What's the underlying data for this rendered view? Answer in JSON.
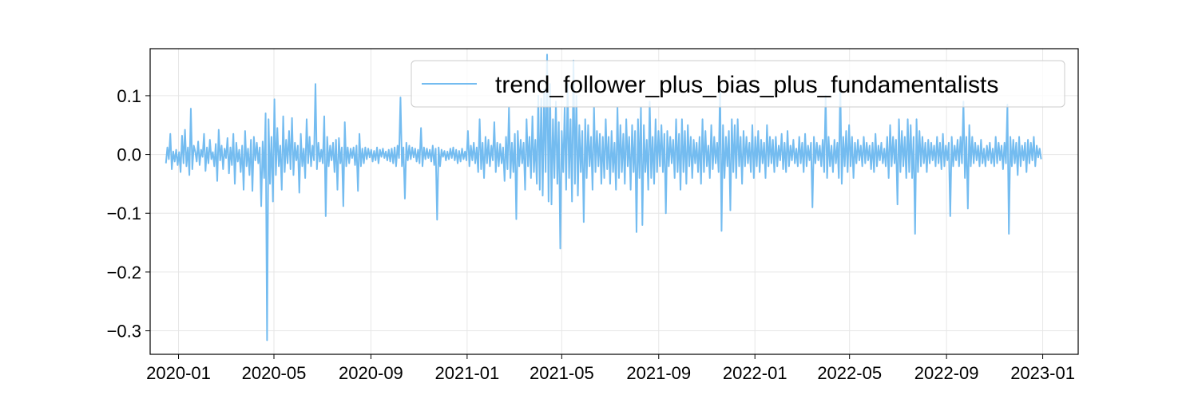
{
  "chart_data": {
    "type": "line",
    "title": "",
    "xlabel": "",
    "ylabel": "",
    "x_range": [
      "2019-11-26",
      "2023-02-15"
    ],
    "x_start": "2019-12-16",
    "x_end": "2022-12-30",
    "ylim": [
      -0.34,
      0.18
    ],
    "grid": true,
    "legend_position": "top-right",
    "x_ticks": [
      {
        "date": "2020-01-01",
        "label": "2020-01"
      },
      {
        "date": "2020-05-01",
        "label": "2020-05"
      },
      {
        "date": "2020-09-01",
        "label": "2020-09"
      },
      {
        "date": "2021-01-01",
        "label": "2021-01"
      },
      {
        "date": "2021-05-01",
        "label": "2021-05"
      },
      {
        "date": "2021-09-01",
        "label": "2021-09"
      },
      {
        "date": "2022-01-01",
        "label": "2022-01"
      },
      {
        "date": "2022-05-01",
        "label": "2022-05"
      },
      {
        "date": "2022-09-01",
        "label": "2022-09"
      },
      {
        "date": "2023-01-01",
        "label": "2023-01"
      }
    ],
    "y_ticks": [
      {
        "value": 0.1,
        "label": "0.1"
      },
      {
        "value": 0.0,
        "label": "0.0"
      },
      {
        "value": -0.1,
        "label": "−0.1"
      },
      {
        "value": -0.2,
        "label": "−0.2"
      },
      {
        "value": -0.3,
        "label": "−0.3"
      }
    ],
    "series": [
      {
        "name": "trend_follower_plus_bias_plus_fundamentalists",
        "color": "#74bcf0",
        "values": [
          -0.015,
          0.012,
          -0.008,
          0.035,
          -0.025,
          0.005,
          -0.012,
          0.008,
          -0.018,
          0.004,
          -0.03,
          0.032,
          -0.015,
          0.042,
          -0.02,
          0.012,
          -0.035,
          0.078,
          -0.025,
          0.015,
          0.005,
          -0.012,
          0.022,
          -0.018,
          0.008,
          -0.004,
          0.035,
          -0.028,
          0.012,
          -0.015,
          0.025,
          -0.008,
          0.004,
          -0.02,
          0.018,
          -0.045,
          0.042,
          -0.01,
          0.015,
          -0.025,
          0.01,
          -0.006,
          0.028,
          -0.032,
          0.012,
          -0.018,
          0.035,
          -0.05,
          0.02,
          -0.012,
          0.008,
          -0.03,
          0.015,
          -0.06,
          0.04,
          -0.02,
          0.01,
          -0.035,
          0.025,
          -0.062,
          0.03,
          -0.01,
          0.02,
          -0.015,
          0.012,
          -0.088,
          0.022,
          -0.04,
          0.07,
          -0.316,
          0.06,
          -0.05,
          0.03,
          -0.08,
          0.094,
          -0.035,
          0.045,
          -0.02,
          0.015,
          -0.06,
          0.065,
          -0.03,
          0.025,
          -0.015,
          0.04,
          -0.025,
          0.062,
          -0.035,
          0.02,
          -0.01,
          0.015,
          -0.065,
          0.035,
          -0.02,
          0.01,
          -0.04,
          0.06,
          -0.015,
          0.03,
          -0.02,
          0.015,
          -0.01,
          0.12,
          -0.025,
          0.02,
          -0.012,
          0.008,
          -0.015,
          0.065,
          -0.105,
          0.03,
          -0.02,
          0.015,
          -0.01,
          0.02,
          -0.03,
          0.025,
          -0.06,
          0.028,
          -0.015,
          0.012,
          -0.088,
          0.055,
          -0.02,
          0.012,
          -0.015,
          0.01,
          -0.006,
          0.012,
          -0.018,
          0.015,
          -0.062,
          0.035,
          -0.02,
          0.01,
          -0.015,
          0.012,
          -0.008,
          0.01,
          -0.005,
          0.008,
          -0.012,
          0.006,
          -0.01,
          0.012,
          -0.015,
          0.008,
          -0.004,
          0.01,
          -0.006,
          0.005,
          -0.01,
          0.008,
          -0.012,
          0.01,
          -0.015,
          0.012,
          -0.02,
          0.015,
          -0.006,
          0.097,
          -0.02,
          0.012,
          -0.075,
          0.02,
          -0.01,
          0.015,
          -0.008,
          0.012,
          -0.005,
          0.01,
          -0.012,
          0.008,
          -0.015,
          0.045,
          -0.02,
          0.012,
          -0.008,
          0.01,
          -0.006,
          0.008,
          -0.012,
          0.015,
          -0.018,
          0.01,
          -0.111,
          0.012,
          -0.02,
          0.008,
          -0.004,
          0.006,
          -0.01,
          0.005,
          -0.008,
          0.01,
          -0.006,
          0.012,
          -0.01,
          0.008,
          -0.015,
          0.006,
          -0.012,
          0.01,
          -0.008,
          0.005,
          -0.01,
          0.04,
          -0.02,
          0.015,
          -0.01,
          0.02,
          -0.015,
          0.012,
          -0.03,
          0.06,
          -0.025,
          0.02,
          -0.04,
          0.03,
          -0.015,
          0.025,
          -0.02,
          0.015,
          -0.01,
          0.055,
          -0.03,
          0.02,
          -0.02,
          0.018,
          -0.015,
          0.012,
          -0.045,
          0.03,
          -0.025,
          0.08,
          -0.04,
          0.02,
          -0.03,
          0.035,
          -0.11,
          0.04,
          -0.02,
          0.025,
          -0.015,
          0.02,
          -0.06,
          0.06,
          -0.02,
          0.03,
          -0.04,
          0.065,
          -0.03,
          0.025,
          -0.05,
          0.1,
          -0.06,
          0.095,
          -0.07,
          0.11,
          -0.03,
          0.17,
          -0.08,
          0.12,
          -0.085,
          0.06,
          -0.04,
          0.09,
          -0.05,
          0.055,
          -0.16,
          0.04,
          -0.03,
          0.08,
          -0.06,
          0.12,
          -0.04,
          0.06,
          -0.08,
          0.16,
          -0.05,
          0.1,
          -0.07,
          0.05,
          -0.03,
          0.04,
          -0.115,
          0.06,
          -0.04,
          0.05,
          -0.02,
          0.03,
          -0.06,
          0.08,
          -0.03,
          0.04,
          -0.02,
          0.035,
          -0.05,
          0.03,
          -0.04,
          0.06,
          -0.025,
          0.03,
          -0.05,
          0.04,
          -0.03,
          0.02,
          -0.06,
          0.08,
          -0.04,
          0.05,
          -0.03,
          0.035,
          -0.05,
          0.06,
          -0.02,
          0.03,
          -0.06,
          0.05,
          -0.03,
          0.04,
          -0.132,
          0.06,
          -0.04,
          0.08,
          -0.12,
          0.05,
          -0.03,
          0.025,
          -0.06,
          0.09,
          -0.04,
          0.03,
          -0.05,
          0.06,
          -0.03,
          0.04,
          -0.02,
          0.05,
          -0.03,
          0.035,
          -0.1,
          0.04,
          -0.02,
          0.03,
          -0.015,
          0.025,
          -0.04,
          0.06,
          -0.03,
          0.035,
          -0.06,
          0.06,
          -0.03,
          0.04,
          -0.05,
          0.05,
          -0.02,
          0.03,
          -0.04,
          0.025,
          -0.015,
          0.02,
          -0.03,
          0.03,
          -0.05,
          0.06,
          -0.03,
          0.04,
          -0.02,
          0.015,
          -0.04,
          0.05,
          -0.025,
          0.03,
          -0.015,
          0.02,
          -0.03,
          0.12,
          -0.13,
          0.05,
          -0.04,
          0.03,
          -0.02,
          0.04,
          -0.095,
          0.06,
          -0.03,
          0.05,
          -0.04,
          0.06,
          -0.02,
          0.03,
          -0.05,
          0.04,
          -0.02,
          0.03,
          -0.015,
          0.02,
          -0.03,
          0.05,
          -0.04,
          0.03,
          -0.02,
          0.04,
          -0.03,
          0.025,
          -0.015,
          0.02,
          -0.04,
          0.05,
          -0.02,
          0.03,
          -0.015,
          0.025,
          -0.03,
          0.03,
          -0.02,
          0.015,
          -0.01,
          0.035,
          -0.025,
          0.02,
          -0.03,
          0.04,
          -0.02,
          0.015,
          -0.01,
          0.025,
          -0.015,
          0.01,
          -0.02,
          0.03,
          -0.015,
          0.02,
          -0.03,
          0.035,
          -0.02,
          0.015,
          -0.01,
          0.02,
          -0.09,
          0.03,
          -0.015,
          0.02,
          -0.01,
          0.015,
          -0.02,
          0.025,
          -0.03,
          0.1,
          -0.04,
          0.03,
          -0.02,
          0.015,
          -0.03,
          0.025,
          -0.015,
          0.02,
          -0.04,
          0.12,
          -0.05,
          0.03,
          -0.02,
          0.04,
          -0.03,
          0.05,
          -0.02,
          0.03,
          -0.04,
          0.02,
          -0.015,
          0.025,
          -0.01,
          0.015,
          -0.02,
          0.03,
          -0.015,
          0.02,
          -0.01,
          0.015,
          -0.025,
          0.02,
          -0.03,
          0.035,
          -0.02,
          0.015,
          -0.01,
          0.02,
          -0.015,
          0.01,
          -0.02,
          0.03,
          -0.04,
          0.05,
          -0.02,
          0.03,
          -0.015,
          0.025,
          -0.085,
          0.06,
          -0.03,
          0.04,
          -0.02,
          0.03,
          -0.04,
          0.06,
          -0.03,
          0.05,
          -0.04,
          0.03,
          -0.135,
          0.06,
          -0.03,
          0.04,
          -0.02,
          0.03,
          -0.015,
          0.02,
          -0.03,
          0.025,
          -0.015,
          0.02,
          -0.01,
          0.015,
          -0.02,
          0.03,
          -0.015,
          0.02,
          -0.025,
          0.035,
          -0.02,
          0.015,
          -0.01,
          0.02,
          -0.105,
          0.03,
          -0.02,
          0.015,
          -0.01,
          0.025,
          -0.02,
          0.03,
          -0.015,
          0.09,
          -0.04,
          0.03,
          -0.092,
          0.05,
          -0.02,
          0.03,
          -0.015,
          0.02,
          -0.01,
          0.015,
          -0.02,
          0.025,
          -0.015,
          0.01,
          -0.02,
          0.015,
          -0.01,
          0.02,
          -0.015,
          0.01,
          -0.02,
          0.03,
          -0.015,
          0.02,
          -0.01,
          0.015,
          -0.025,
          0.02,
          -0.015,
          0.085,
          -0.135,
          0.03,
          -0.02,
          0.025,
          -0.015,
          0.02,
          -0.035,
          0.03,
          -0.02,
          0.015,
          -0.01,
          0.02,
          -0.03,
          0.025,
          -0.015,
          0.02,
          -0.01,
          0.03,
          -0.02,
          0.015,
          -0.005,
          0.01,
          -0.008
        ]
      }
    ]
  }
}
